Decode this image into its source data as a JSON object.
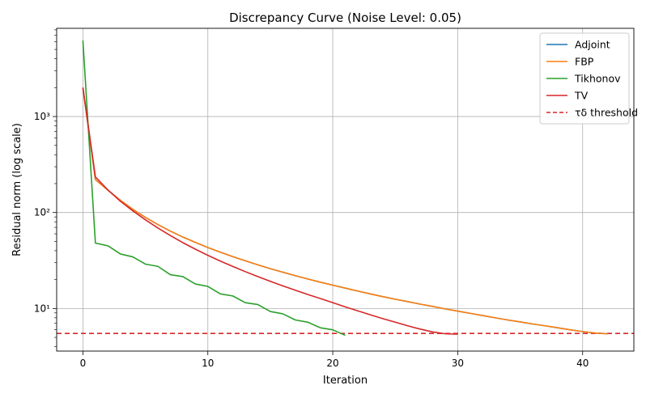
{
  "chart_data": {
    "type": "line",
    "title": "Discrepancy Curve (Noise Level: 0.05)",
    "xlabel": "Iteration",
    "ylabel": "Residual norm (log scale)",
    "yscale": "log",
    "grid": true,
    "legend_position": "top-right",
    "xlim": [
      -2.1,
      44.1
    ],
    "ylim": [
      3.6,
      8300
    ],
    "x_ticks": [
      0,
      10,
      20,
      30,
      40
    ],
    "x_tick_labels": [
      "0",
      "10",
      "20",
      "30",
      "40"
    ],
    "y_ticks": [
      10,
      100,
      1000
    ],
    "y_tick_labels": [
      "10¹",
      "10²",
      "10³"
    ],
    "series": [
      {
        "name": "Adjoint",
        "color": "#1f77b4",
        "x": [
          0,
          1,
          2,
          3,
          4,
          5,
          6,
          7,
          8,
          9,
          10,
          11,
          12,
          13,
          14,
          15,
          16,
          17,
          18,
          19,
          20,
          21,
          22,
          23,
          24,
          25,
          26,
          27,
          28,
          29,
          30,
          31,
          32,
          33,
          34,
          35,
          36,
          37,
          38,
          39,
          40,
          41,
          42
        ],
        "values": [
          2000,
          220,
          171,
          134,
          108,
          89,
          75,
          64,
          55.5,
          48.8,
          43.2,
          38.6,
          34.7,
          31.4,
          28.5,
          26.0,
          23.9,
          22.0,
          20.3,
          18.8,
          17.5,
          16.3,
          15.2,
          14.2,
          13.3,
          12.5,
          11.8,
          11.1,
          10.5,
          9.9,
          9.4,
          8.9,
          8.45,
          8.0,
          7.6,
          7.25,
          6.9,
          6.6,
          6.3,
          6.0,
          5.75,
          5.55,
          5.45
        ]
      },
      {
        "name": "FBP",
        "color": "#ff7f0e",
        "x": [
          0,
          1,
          2,
          3,
          4,
          5,
          6,
          7,
          8,
          9,
          10,
          11,
          12,
          13,
          14,
          15,
          16,
          17,
          18,
          19,
          20,
          21,
          22,
          23,
          24,
          25,
          26,
          27,
          28,
          29,
          30,
          31,
          32,
          33,
          34,
          35,
          36,
          37,
          38,
          39,
          40,
          41,
          42
        ],
        "values": [
          2000,
          220,
          171,
          134,
          108,
          89,
          75,
          64,
          55.5,
          48.8,
          43.2,
          38.6,
          34.7,
          31.4,
          28.5,
          26.0,
          23.9,
          22.0,
          20.3,
          18.8,
          17.5,
          16.3,
          15.2,
          14.2,
          13.3,
          12.5,
          11.8,
          11.1,
          10.5,
          9.9,
          9.4,
          8.9,
          8.45,
          8.0,
          7.6,
          7.25,
          6.9,
          6.6,
          6.3,
          6.0,
          5.75,
          5.55,
          5.45
        ]
      },
      {
        "name": "Tikhonov",
        "color": "#2ca02c",
        "x": [
          0,
          1,
          2,
          3,
          4,
          5,
          6,
          7,
          8,
          9,
          10,
          11,
          12,
          13,
          14,
          15,
          16,
          17,
          18,
          19,
          20,
          21
        ],
        "values": [
          6200,
          48,
          45,
          37,
          34.5,
          29,
          27.5,
          22.5,
          21.5,
          18,
          17,
          14.2,
          13.5,
          11.5,
          11,
          9.3,
          8.8,
          7.6,
          7.2,
          6.3,
          6.0,
          5.25
        ]
      },
      {
        "name": "TV",
        "color": "#d62728",
        "x": [
          0,
          1,
          2,
          3,
          4,
          5,
          6,
          7,
          8,
          9,
          10,
          11,
          12,
          13,
          14,
          15,
          16,
          17,
          18,
          19,
          20,
          21,
          22,
          23,
          24,
          25,
          26,
          27,
          28,
          29,
          30
        ],
        "values": [
          2000,
          235,
          172,
          131,
          104,
          84,
          69,
          57.5,
          48.5,
          41.5,
          35.8,
          31.2,
          27.4,
          24.2,
          21.5,
          19.2,
          17.2,
          15.5,
          14.0,
          12.7,
          11.5,
          10.4,
          9.45,
          8.6,
          7.85,
          7.2,
          6.6,
          6.1,
          5.7,
          5.45,
          5.4
        ]
      }
    ],
    "threshold": {
      "label": "τδ threshold",
      "value": 5.5,
      "color": "#d62728",
      "style": "dashed"
    }
  }
}
